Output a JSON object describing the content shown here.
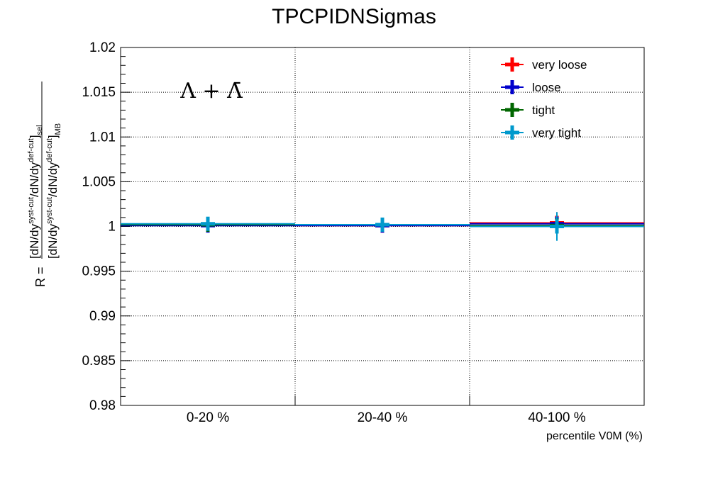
{
  "chart_data": {
    "type": "scatter",
    "title": "TPCPIDNSigmas",
    "annotation": "Λ + Λ̄",
    "xlabel": "percentile V0M (%)",
    "ylabel": "R = [dN/dy^{syst-cut}/dN/dy^{def-cut}]_{sel} / [dN/dy^{syst-cut}/dN/dy^{def-cut}]_{MB}",
    "ylabel_parts": {
      "prefix": "R =",
      "num": "[dN/dy",
      "num_sup1": "syst-cut",
      "num_mid": "/dN/dy",
      "num_sup2": "def-cut",
      "num_end": "]",
      "num_sub": "sel",
      "den": "[dN/dy",
      "den_sup1": "syst-cut",
      "den_mid": "/dN/dy",
      "den_sup2": "def-cut",
      "den_end": "]",
      "den_sub": "MB"
    },
    "categories": [
      "0-20 %",
      "20-40 %",
      "40-100 %"
    ],
    "ylim": [
      0.98,
      1.02
    ],
    "yticks": [
      "0.98",
      "0.985",
      "0.99",
      "0.995",
      "1",
      "1.005",
      "1.01",
      "1.015",
      "1.02"
    ],
    "grid": true,
    "legend_position": "top-right",
    "series": [
      {
        "name": "very loose",
        "color": "#ff0000",
        "values": [
          1.0002,
          1.0001,
          1.0004
        ],
        "errors": [
          0.0003,
          0.0003,
          0.0012
        ]
      },
      {
        "name": "loose",
        "color": "#0000cc",
        "values": [
          1.0001,
          1.0001,
          1.0003
        ],
        "errors": [
          0.0004,
          0.0004,
          0.0011
        ]
      },
      {
        "name": "tight",
        "color": "#006600",
        "values": [
          1.0002,
          1.0002,
          1.0001
        ],
        "errors": [
          0.0003,
          0.0003,
          0.001
        ]
      },
      {
        "name": "very tight",
        "color": "#0099cc",
        "values": [
          1.0003,
          1.0002,
          1.0
        ],
        "errors": [
          0.0003,
          0.0003,
          0.0016
        ]
      }
    ]
  }
}
